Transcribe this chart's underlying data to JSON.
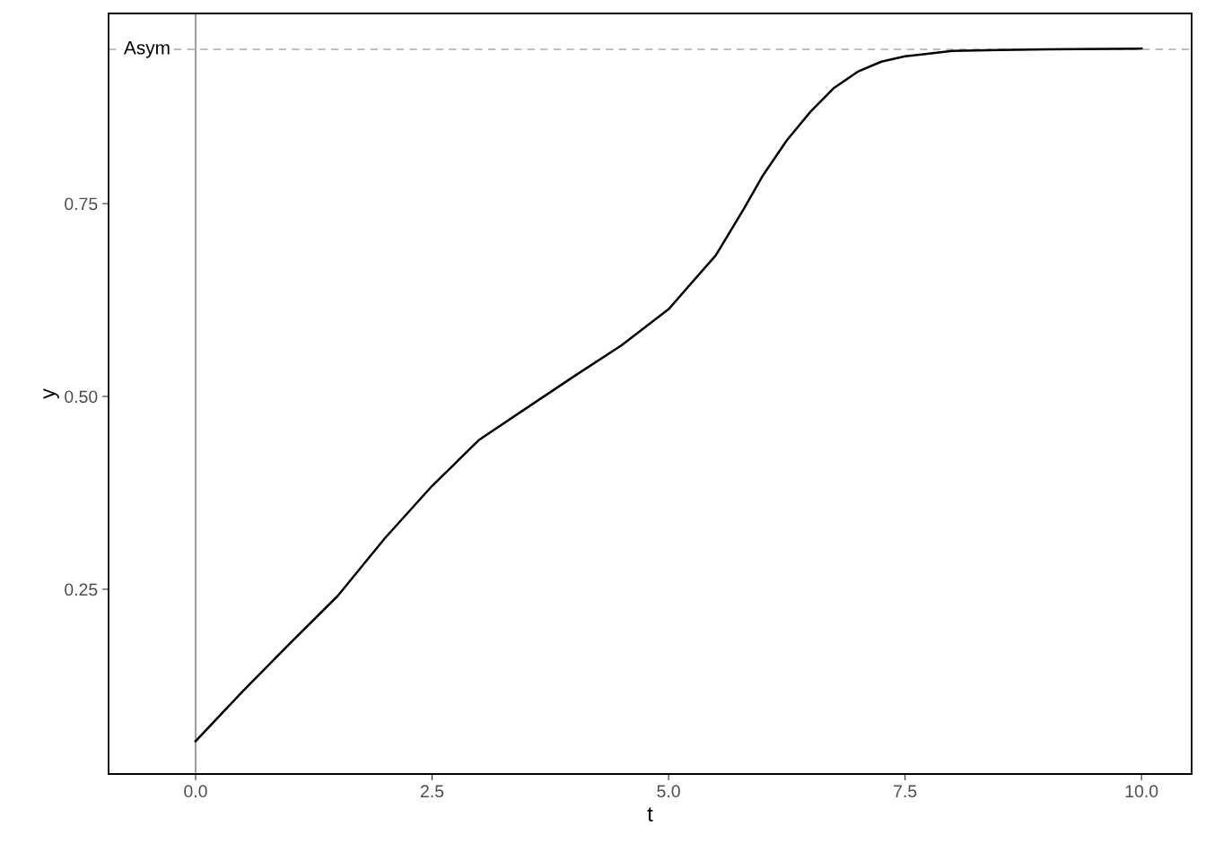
{
  "chart_data": {
    "type": "line",
    "xlabel": "t",
    "ylabel": "y",
    "xlim": [
      -0.92,
      10.53
    ],
    "ylim": [
      0.0105,
      0.9965
    ],
    "xticks": [
      {
        "value": 0,
        "label": "0.0"
      },
      2.5,
      {
        "value": 5,
        "label": "5.0"
      },
      7.5,
      {
        "value": 10,
        "label": "10.0"
      }
    ],
    "yticks": [
      0.25,
      {
        "value": 0.5,
        "label": "0.50"
      },
      0.75
    ],
    "grid": false,
    "legend": false,
    "marker": "none",
    "line_style": "solid",
    "ref_lines": [
      {
        "axis": "y",
        "value": 0.95,
        "label": "Asym",
        "color": "#bebebe",
        "line_style": "dashed"
      },
      {
        "axis": "x",
        "value": 0,
        "label": null,
        "color": "#a0a0a0",
        "line_style": "solid"
      }
    ],
    "x": [
      0,
      0.5,
      1,
      1.5,
      2,
      2.5,
      3,
      3.5,
      4,
      4.5,
      5,
      5.5,
      5.8,
      6,
      6.25,
      6.5,
      6.75,
      7,
      7.25,
      7.5,
      8,
      8.5,
      9,
      10
    ],
    "series": [
      {
        "color": "#000000",
        "values": [
          0.053,
          0.118,
          0.18,
          0.241,
          0.316,
          0.384,
          0.444,
          0.485,
          0.526,
          0.566,
          0.613,
          0.683,
          0.744,
          0.787,
          0.832,
          0.869,
          0.9,
          0.921,
          0.934,
          0.941,
          0.948,
          0.949,
          0.95,
          0.951
        ]
      }
    ]
  }
}
